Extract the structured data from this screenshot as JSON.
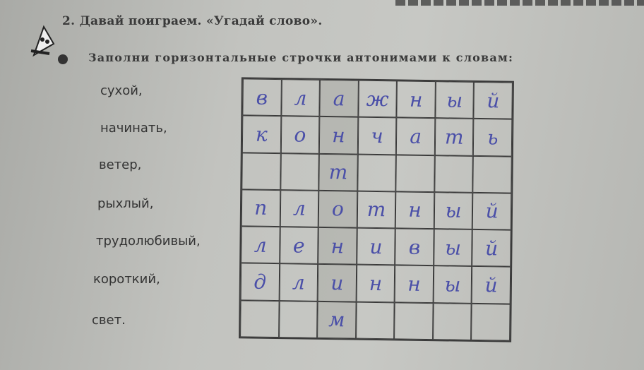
{
  "task": {
    "title": "2. Давай поиграем. «Угадай слово».",
    "instruction": "Заполни горизонтальные строчки антонимами к словам:"
  },
  "words": [
    "сухой,",
    "начинать,",
    "ветер,",
    "рыхлый,",
    "трудолюбивый,",
    "короткий,",
    "свет."
  ],
  "grid": [
    [
      "в",
      "л",
      "а",
      "ж",
      "н",
      "ы",
      "й"
    ],
    [
      "к",
      "о",
      "н",
      "ч",
      "а",
      "т",
      "ь"
    ],
    [
      "",
      "",
      "т",
      "",
      "",
      "",
      ""
    ],
    [
      "п",
      "л",
      "о",
      "т",
      "н",
      "ы",
      "й"
    ],
    [
      "л",
      "е",
      "н",
      "и",
      "в",
      "ы",
      "й"
    ],
    [
      "д",
      "л",
      "и",
      "н",
      "н",
      "ы",
      "й"
    ],
    [
      "",
      "",
      "м",
      "",
      "",
      "",
      ""
    ]
  ],
  "colors": {
    "handwriting": "#4a4fa8",
    "paper": "#c2c3bf"
  }
}
